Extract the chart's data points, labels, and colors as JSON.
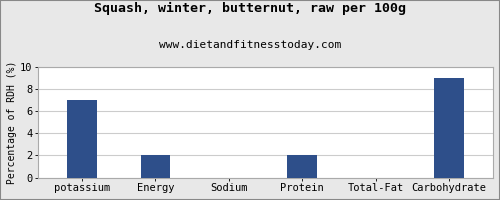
{
  "title": "Squash, winter, butternut, raw per 100g",
  "subtitle": "www.dietandfitnesstoday.com",
  "categories": [
    "potassium",
    "Energy",
    "Sodium",
    "Protein",
    "Total-Fat",
    "Carbohydrate"
  ],
  "values": [
    7,
    2,
    0,
    2,
    0,
    9
  ],
  "bar_color": "#2e4f8a",
  "ylabel": "Percentage of RDH (%)",
  "ylim": [
    0,
    10
  ],
  "yticks": [
    0,
    2,
    4,
    6,
    8,
    10
  ],
  "background_color": "#e8e8e8",
  "plot_bg_color": "#ffffff",
  "title_fontsize": 9.5,
  "subtitle_fontsize": 8,
  "ylabel_fontsize": 7,
  "tick_fontsize": 7.5,
  "border_color": "#aaaaaa"
}
